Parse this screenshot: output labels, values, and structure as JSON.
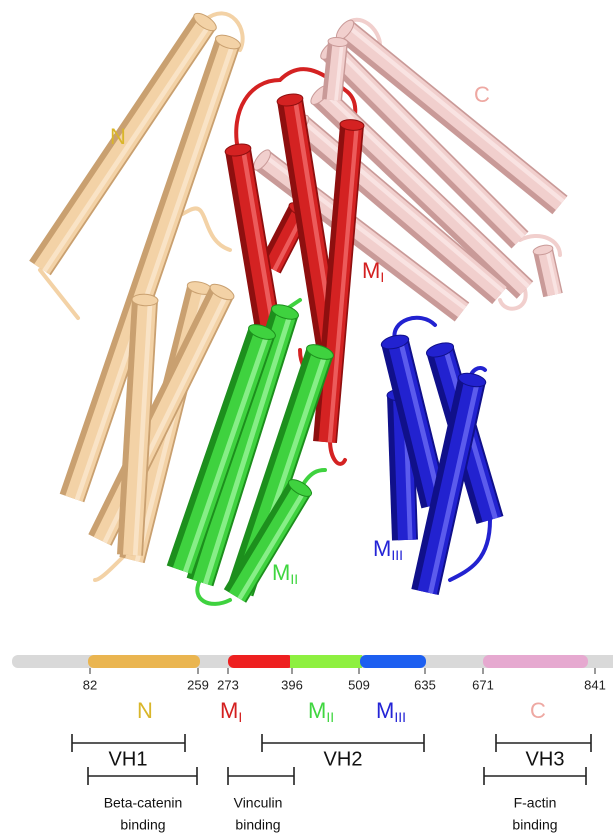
{
  "structure_labels": {
    "n": "N",
    "c": "C",
    "m1": {
      "main": "M",
      "sub": "I"
    },
    "m2": {
      "main": "M",
      "sub": "II"
    },
    "m3": {
      "main": "M",
      "sub": "III"
    }
  },
  "domain_map": {
    "positions": [
      "82",
      "259",
      "273",
      "396",
      "509",
      "635",
      "671",
      "841"
    ],
    "domains": [
      {
        "main": "N"
      },
      {
        "main": "M",
        "sub": "I"
      },
      {
        "main": "M",
        "sub": "II"
      },
      {
        "main": "M",
        "sub": "III"
      },
      {
        "main": "C"
      }
    ],
    "regions": [
      "VH1",
      "VH2",
      "VH3"
    ],
    "binding": [
      {
        "line1": "Beta-catenin",
        "line2": "binding"
      },
      {
        "line1": "Vinculin",
        "line2": "binding"
      },
      {
        "line1": "F-actin",
        "line2": "binding"
      }
    ]
  }
}
